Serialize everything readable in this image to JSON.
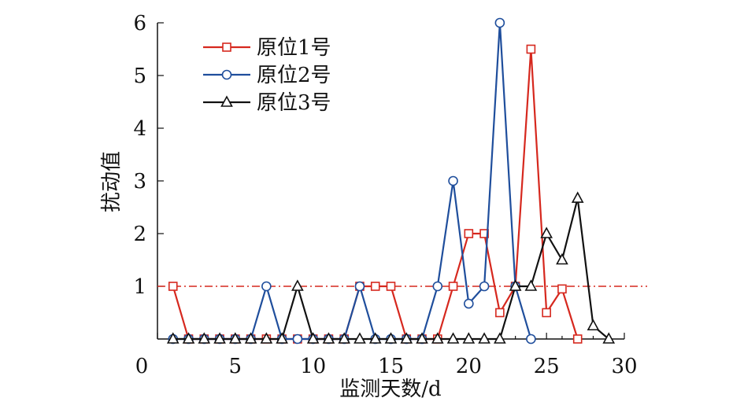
{
  "chart_data": {
    "type": "line",
    "xlabel": "监测天数/d",
    "ylabel": "扰动值",
    "xlim": [
      0,
      30
    ],
    "ylim": [
      0,
      6
    ],
    "xticks": [
      0,
      5,
      10,
      15,
      20,
      25,
      30
    ],
    "yticks": [
      1,
      2,
      3,
      4,
      5,
      6
    ],
    "grid": false,
    "legend_position": "top-left",
    "reference_line": {
      "y": 1,
      "color": "#d6281e",
      "style": "dash-dot"
    },
    "series": [
      {
        "name": "原位1号",
        "color": "#d6281e",
        "marker": "square",
        "points": [
          [
            1,
            1
          ],
          [
            2,
            0
          ],
          [
            3,
            0
          ],
          [
            4,
            0
          ],
          [
            5,
            0
          ],
          [
            6,
            0
          ],
          [
            7,
            0
          ],
          [
            8,
            0
          ],
          [
            9,
            0
          ],
          [
            10,
            0
          ],
          [
            11,
            0
          ],
          [
            12,
            0
          ],
          [
            13,
            1
          ],
          [
            14,
            1
          ],
          [
            15,
            1
          ],
          [
            16,
            0
          ],
          [
            17,
            0
          ],
          [
            18,
            0
          ],
          [
            19,
            1
          ],
          [
            20,
            2
          ],
          [
            21,
            2
          ],
          [
            22,
            0.5
          ],
          [
            23,
            1
          ],
          [
            24,
            5.5
          ],
          [
            25,
            0.5
          ],
          [
            26,
            0.95
          ],
          [
            27,
            0
          ]
        ]
      },
      {
        "name": "原位2号",
        "color": "#1f4e9c",
        "marker": "circle",
        "points": [
          [
            1,
            0
          ],
          [
            2,
            0
          ],
          [
            3,
            0
          ],
          [
            4,
            0
          ],
          [
            5,
            0
          ],
          [
            6,
            0
          ],
          [
            7,
            1
          ],
          [
            8,
            0
          ],
          [
            9,
            0
          ],
          [
            10,
            0
          ],
          [
            11,
            0
          ],
          [
            12,
            0
          ],
          [
            13,
            1
          ],
          [
            14,
            0
          ],
          [
            15,
            0
          ],
          [
            16,
            0
          ],
          [
            17,
            0
          ],
          [
            18,
            1
          ],
          [
            19,
            3
          ],
          [
            20,
            0.67
          ],
          [
            21,
            1
          ],
          [
            22,
            6
          ],
          [
            23,
            1
          ],
          [
            24,
            0
          ]
        ]
      },
      {
        "name": "原位3号",
        "color": "#111111",
        "marker": "triangle",
        "points": [
          [
            1,
            0
          ],
          [
            2,
            0
          ],
          [
            3,
            0
          ],
          [
            4,
            0
          ],
          [
            5,
            0
          ],
          [
            6,
            0
          ],
          [
            7,
            0
          ],
          [
            8,
            0
          ],
          [
            9,
            1
          ],
          [
            10,
            0
          ],
          [
            11,
            0
          ],
          [
            12,
            0
          ],
          [
            13,
            0
          ],
          [
            14,
            0
          ],
          [
            15,
            0
          ],
          [
            16,
            0
          ],
          [
            17,
            0
          ],
          [
            18,
            0
          ],
          [
            19,
            0
          ],
          [
            20,
            0
          ],
          [
            21,
            0
          ],
          [
            22,
            0
          ],
          [
            23,
            1
          ],
          [
            24,
            1
          ],
          [
            25,
            2
          ],
          [
            26,
            1.5
          ],
          [
            27,
            2.67
          ],
          [
            28,
            0.25
          ],
          [
            29,
            0
          ]
        ]
      }
    ]
  }
}
